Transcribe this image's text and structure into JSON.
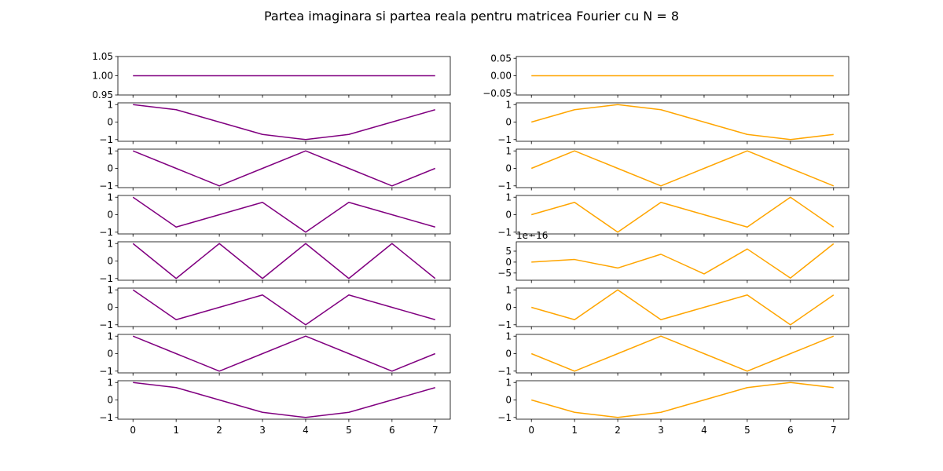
{
  "title": "Partea imaginara si partea reala pentru matricea Fourier cu N = 8",
  "colors": {
    "left": "#800080",
    "right": "#ffa500"
  },
  "chart_data": {
    "type": "line",
    "layout": "8 rows x 2 columns of subplots",
    "x": [
      0,
      1,
      2,
      3,
      4,
      5,
      6,
      7
    ],
    "x_ticks": [
      "0",
      "1",
      "2",
      "3",
      "4",
      "5",
      "6",
      "7"
    ],
    "left_column": [
      {
        "values": [
          1,
          1,
          1,
          1,
          1,
          1,
          1,
          1
        ],
        "ylim": [
          0.95,
          1.05
        ],
        "yticks": [
          0.95,
          1.0,
          1.05
        ],
        "ytick_labels": [
          "0.95",
          "1.00",
          "1.05"
        ]
      },
      {
        "values": [
          1,
          0.7071,
          0,
          -0.7071,
          -1,
          -0.7071,
          0,
          0.7071
        ],
        "ylim": [
          -1.1,
          1.1
        ],
        "yticks": [
          -1,
          0,
          1
        ],
        "ytick_labels": [
          "−1",
          "0",
          "1"
        ]
      },
      {
        "values": [
          1,
          0,
          -1,
          0,
          1,
          0,
          -1,
          0
        ],
        "ylim": [
          -1.1,
          1.1
        ],
        "yticks": [
          -1,
          0,
          1
        ],
        "ytick_labels": [
          "−1",
          "0",
          "1"
        ]
      },
      {
        "values": [
          1,
          -0.7071,
          0,
          0.7071,
          -1,
          0.7071,
          0,
          -0.7071
        ],
        "ylim": [
          -1.1,
          1.1
        ],
        "yticks": [
          -1,
          0,
          1
        ],
        "ytick_labels": [
          "−1",
          "0",
          "1"
        ]
      },
      {
        "values": [
          1,
          -1,
          1,
          -1,
          1,
          -1,
          1,
          -1
        ],
        "ylim": [
          -1.1,
          1.1
        ],
        "yticks": [
          -1,
          0,
          1
        ],
        "ytick_labels": [
          "−1",
          "0",
          "1"
        ]
      },
      {
        "values": [
          1,
          -0.7071,
          0,
          0.7071,
          -1,
          0.7071,
          0,
          -0.7071
        ],
        "ylim": [
          -1.1,
          1.1
        ],
        "yticks": [
          -1,
          0,
          1
        ],
        "ytick_labels": [
          "−1",
          "0",
          "1"
        ]
      },
      {
        "values": [
          1,
          0,
          -1,
          0,
          1,
          0,
          -1,
          0
        ],
        "ylim": [
          -1.1,
          1.1
        ],
        "yticks": [
          -1,
          0,
          1
        ],
        "ytick_labels": [
          "−1",
          "0",
          "1"
        ]
      },
      {
        "values": [
          1,
          0.7071,
          0,
          -0.7071,
          -1,
          -0.7071,
          0,
          0.7071
        ],
        "ylim": [
          -1.1,
          1.1
        ],
        "yticks": [
          -1,
          0,
          1
        ],
        "ytick_labels": [
          "−1",
          "0",
          "1"
        ]
      }
    ],
    "right_column": [
      {
        "values": [
          0,
          0,
          0,
          0,
          0,
          0,
          0,
          0
        ],
        "ylim": [
          -0.055,
          0.055
        ],
        "yticks": [
          -0.05,
          0.0,
          0.05
        ],
        "ytick_labels": [
          "−0.05",
          "0.00",
          "0.05"
        ]
      },
      {
        "values": [
          0,
          0.7071,
          1,
          0.7071,
          0,
          -0.7071,
          -1,
          -0.7071
        ],
        "ylim": [
          -1.1,
          1.1
        ],
        "yticks": [
          -1,
          0,
          1
        ],
        "ytick_labels": [
          "−1",
          "0",
          "1"
        ]
      },
      {
        "values": [
          0,
          1,
          0,
          -1,
          0,
          1,
          0,
          -1
        ],
        "ylim": [
          -1.1,
          1.1
        ],
        "yticks": [
          -1,
          0,
          1
        ],
        "ytick_labels": [
          "−1",
          "0",
          "1"
        ]
      },
      {
        "values": [
          0,
          0.7071,
          -1,
          0.7071,
          0,
          -0.7071,
          1,
          -0.7071
        ],
        "ylim": [
          -1.1,
          1.1
        ],
        "yticks": [
          -1,
          0,
          1
        ],
        "ytick_labels": [
          "−1",
          "0",
          "1"
        ]
      },
      {
        "values": [
          0,
          1.2,
          -2.7,
          3.6,
          -5.4,
          6.0,
          -7.3,
          8.4
        ],
        "ylim": [
          -8.3,
          9.3
        ],
        "yticks": [
          -5,
          0,
          5
        ],
        "ytick_labels": [
          "−5",
          "0",
          "5"
        ],
        "offset_text": "1e−16"
      },
      {
        "values": [
          0,
          -0.7071,
          1,
          -0.7071,
          0,
          0.7071,
          -1,
          0.7071
        ],
        "ylim": [
          -1.1,
          1.1
        ],
        "yticks": [
          -1,
          0,
          1
        ],
        "ytick_labels": [
          "−1",
          "0",
          "1"
        ]
      },
      {
        "values": [
          0,
          -1,
          0,
          1,
          0,
          -1,
          0,
          1
        ],
        "ylim": [
          -1.1,
          1.1
        ],
        "yticks": [
          -1,
          0,
          1
        ],
        "ytick_labels": [
          "−1",
          "0",
          "1"
        ]
      },
      {
        "values": [
          0,
          -0.7071,
          -1,
          -0.7071,
          0,
          0.7071,
          1,
          0.7071
        ],
        "ylim": [
          -1.1,
          1.1
        ],
        "yticks": [
          -1,
          0,
          1
        ],
        "ytick_labels": [
          "−1",
          "0",
          "1"
        ]
      }
    ]
  }
}
